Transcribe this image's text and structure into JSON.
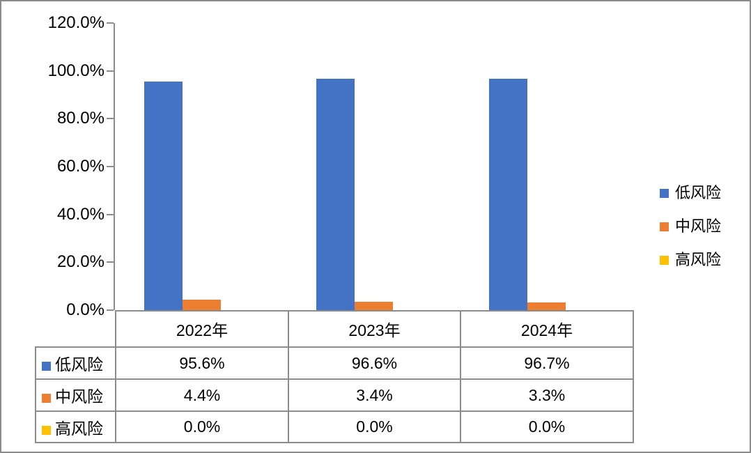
{
  "chart_data": {
    "type": "bar",
    "title": "",
    "xlabel": "",
    "ylabel": "",
    "categories": [
      "2022年",
      "2023年",
      "2024年"
    ],
    "series": [
      {
        "name": "低风险",
        "color": "#4472C4",
        "values": [
          95.6,
          96.6,
          96.7
        ],
        "labels": [
          "95.6%",
          "96.6%",
          "96.7%"
        ]
      },
      {
        "name": "中风险",
        "color": "#ED7D31",
        "values": [
          4.4,
          3.4,
          3.3
        ],
        "labels": [
          "4.4%",
          "3.4%",
          "3.3%"
        ]
      },
      {
        "name": "高风险",
        "color": "#FFC000",
        "values": [
          0.0,
          0.0,
          0.0
        ],
        "labels": [
          "0.0%",
          "0.0%",
          "0.0%"
        ]
      }
    ],
    "ylim": [
      0,
      120
    ],
    "ytick_values": [
      120,
      100,
      80,
      60,
      40,
      20,
      0
    ],
    "yticks": [
      "120.0%",
      "100.0%",
      "80.0%",
      "60.0%",
      "40.0%",
      "20.0%",
      "0.0%"
    ],
    "grid": false,
    "legend_position": "right",
    "data_table_shown": true,
    "axis_color": "#8c8c8c"
  }
}
